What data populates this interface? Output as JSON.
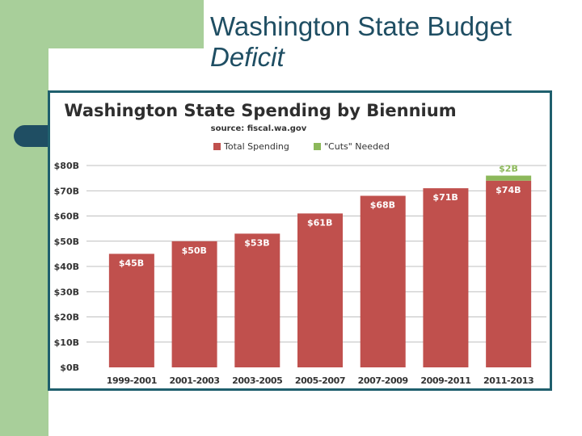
{
  "slide": {
    "title_line1": "Washington State Budget",
    "title_line2": "Deficit"
  },
  "colors": {
    "spending": "#c0504d",
    "cuts": "#8cb85a",
    "grid": "#aaaaaa",
    "theme": "#1f4e63",
    "band": "#a8cf9a"
  },
  "chart_data": {
    "type": "bar",
    "stacked": true,
    "title": "Washington State Spending by Biennium",
    "subtitle": "source: fiscal.wa.gov",
    "categories": [
      "1999-2001",
      "2001-2003",
      "2003-2005",
      "2005-2007",
      "2007-2009",
      "2009-2011",
      "2011-2013"
    ],
    "series": [
      {
        "name": "Total Spending",
        "values": [
          45,
          50,
          53,
          61,
          68,
          71,
          74
        ],
        "labels": [
          "$45B",
          "$50B",
          "$53B",
          "$61B",
          "$68B",
          "$71B",
          "$74B"
        ]
      },
      {
        "name": "\"Cuts\" Needed",
        "values": [
          0,
          0,
          0,
          0,
          0,
          0,
          2
        ],
        "labels": [
          "",
          "",
          "",
          "",
          "",
          "",
          "$2B"
        ]
      }
    ],
    "ylim": [
      0,
      80
    ],
    "y_ticks": [
      0,
      10,
      20,
      30,
      40,
      50,
      60,
      70,
      80
    ],
    "y_tick_labels": [
      "$0B",
      "$10B",
      "$20B",
      "$30B",
      "$40B",
      "$50B",
      "$60B",
      "$70B",
      "$80B"
    ],
    "grid": true,
    "legend": "top"
  }
}
